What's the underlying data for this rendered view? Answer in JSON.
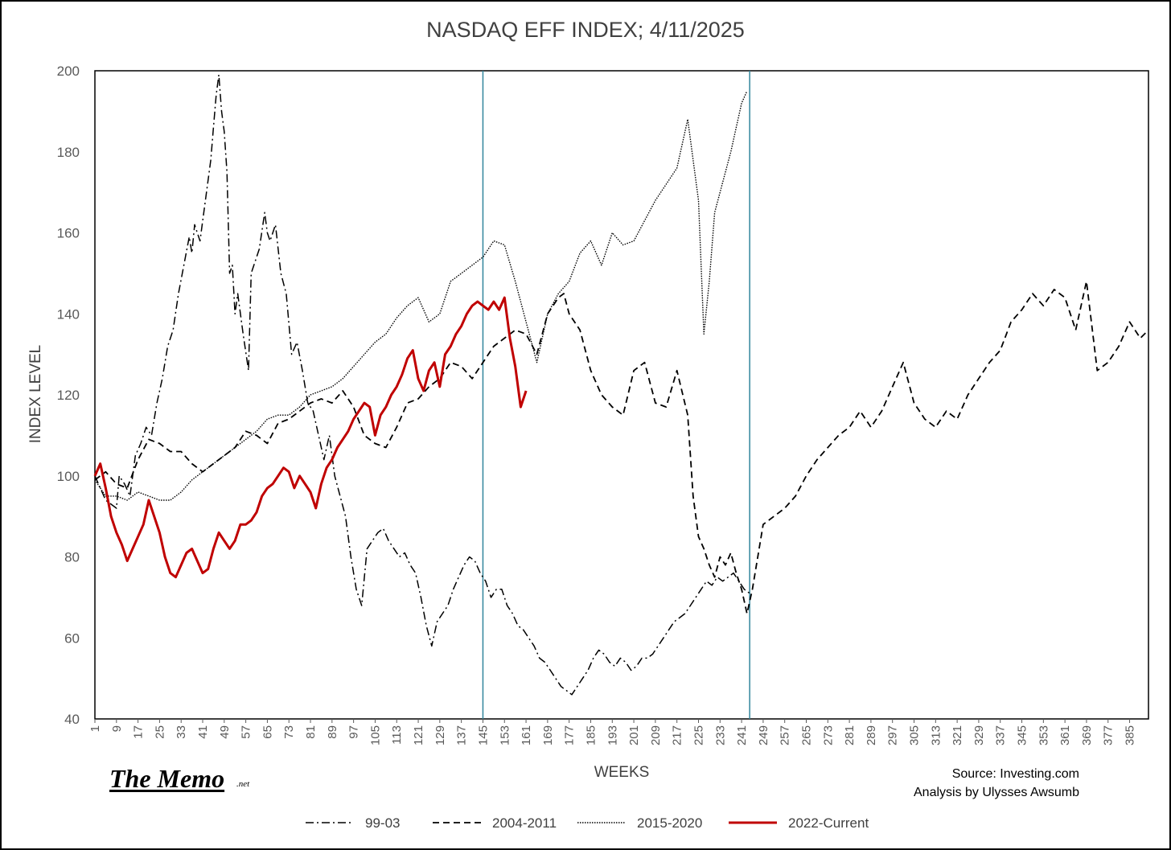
{
  "chart_data": {
    "type": "line",
    "title": "NASDAQ EFF INDEX; 4/11/2025",
    "xlabel": "WEEKS",
    "ylabel": "INDEX LEVEL",
    "xlim": [
      1,
      392
    ],
    "ylim": [
      40,
      200
    ],
    "y_ticks": [
      40,
      60,
      80,
      100,
      120,
      140,
      160,
      180,
      200
    ],
    "x_ticks": [
      1,
      9,
      17,
      25,
      33,
      41,
      49,
      57,
      65,
      73,
      81,
      89,
      97,
      105,
      113,
      121,
      129,
      137,
      145,
      153,
      161,
      169,
      177,
      185,
      193,
      201,
      209,
      217,
      225,
      233,
      241,
      249,
      257,
      265,
      273,
      281,
      289,
      297,
      305,
      313,
      321,
      329,
      337,
      345,
      353,
      361,
      369,
      377,
      385
    ],
    "vertical_lines": [
      145,
      244
    ],
    "grid": false,
    "legend_position": "bottom",
    "series": [
      {
        "name": "99-03",
        "color": "#000000",
        "style": "dashdot",
        "x": [
          1,
          5,
          9,
          10,
          12,
          14,
          16,
          18,
          20,
          22,
          24,
          26,
          28,
          30,
          32,
          34,
          36,
          37,
          38,
          39,
          40,
          42,
          44,
          45,
          46,
          47,
          48,
          49,
          50,
          51,
          52,
          53,
          54,
          56,
          58,
          59,
          60,
          62,
          64,
          65,
          66,
          68,
          70,
          72,
          74,
          76,
          78,
          80,
          82,
          84,
          86,
          88,
          90,
          92,
          94,
          96,
          98,
          100,
          102,
          104,
          106,
          108,
          110,
          112,
          114,
          116,
          118,
          120,
          122,
          124,
          126,
          128,
          130,
          132,
          134,
          136,
          138,
          140,
          142,
          144,
          146,
          148,
          150,
          152,
          154,
          156,
          158,
          160,
          162,
          164,
          166,
          168,
          170,
          172,
          174,
          176,
          178,
          180,
          182,
          184,
          186,
          188,
          190,
          192,
          194,
          196,
          198,
          200,
          202,
          204,
          206,
          208,
          210,
          212,
          214,
          216,
          218,
          220,
          222,
          224,
          226,
          228,
          230,
          232,
          234,
          236,
          238,
          240,
          242,
          244
        ],
        "values": [
          100,
          94,
          92,
          100,
          98,
          95,
          105,
          108,
          112,
          110,
          118,
          124,
          132,
          136,
          145,
          152,
          159,
          155,
          162,
          160,
          158,
          168,
          178,
          186,
          194,
          199,
          190,
          185,
          175,
          150,
          152,
          140,
          145,
          135,
          126,
          150,
          152,
          156,
          165,
          160,
          158,
          162,
          150,
          145,
          130,
          133,
          126,
          118,
          116,
          110,
          104,
          110,
          100,
          95,
          90,
          80,
          72,
          68,
          82,
          84,
          86,
          87,
          84,
          82,
          80,
          81,
          78,
          76,
          70,
          63,
          58,
          64,
          66,
          68,
          72,
          75,
          78,
          80,
          79,
          76,
          74,
          70,
          72,
          72,
          68,
          66,
          63,
          62,
          60,
          58,
          55,
          54,
          52,
          50,
          48,
          47,
          46,
          48,
          50,
          52,
          55,
          57,
          56,
          54,
          53,
          55,
          54,
          52,
          53,
          55,
          55,
          56,
          58,
          60,
          62,
          64,
          65,
          66,
          68,
          70,
          72,
          74,
          73,
          75,
          74,
          75,
          76,
          74,
          72,
          71
        ]
      },
      {
        "name": "2004-2011",
        "color": "#000000",
        "style": "dashed",
        "x": [
          1,
          5,
          9,
          13,
          17,
          21,
          25,
          29,
          33,
          37,
          41,
          45,
          49,
          53,
          57,
          61,
          65,
          69,
          73,
          77,
          81,
          85,
          89,
          93,
          97,
          101,
          105,
          109,
          113,
          117,
          121,
          125,
          129,
          133,
          137,
          141,
          145,
          149,
          153,
          157,
          161,
          165,
          169,
          173,
          175,
          177,
          181,
          185,
          189,
          193,
          197,
          201,
          205,
          209,
          213,
          217,
          221,
          223,
          225,
          227,
          229,
          231,
          233,
          235,
          237,
          239,
          241,
          243,
          245,
          249,
          253,
          257,
          261,
          265,
          269,
          273,
          277,
          281,
          285,
          289,
          293,
          297,
          301,
          305,
          309,
          313,
          317,
          321,
          325,
          329,
          333,
          337,
          341,
          345,
          349,
          353,
          357,
          361,
          365,
          369,
          373,
          377,
          381,
          385,
          389,
          392
        ],
        "values": [
          99,
          101,
          98,
          97,
          104,
          109,
          108,
          106,
          106,
          103,
          101,
          103,
          105,
          107,
          111,
          110,
          108,
          113,
          114,
          116,
          118,
          119,
          118,
          121,
          117,
          110,
          108,
          107,
          112,
          118,
          119,
          122,
          124,
          128,
          127,
          124,
          128,
          132,
          134,
          136,
          135,
          130,
          140,
          144,
          145,
          140,
          136,
          126,
          120,
          117,
          115,
          126,
          128,
          118,
          117,
          126,
          115,
          95,
          85,
          82,
          78,
          75,
          80,
          78,
          81,
          76,
          72,
          66,
          72,
          88,
          90,
          92,
          95,
          100,
          104,
          107,
          110,
          112,
          116,
          112,
          116,
          122,
          128,
          118,
          114,
          112,
          116,
          114,
          120,
          124,
          128,
          131,
          138,
          141,
          145,
          142,
          146,
          144,
          136,
          148,
          126,
          128,
          132,
          138,
          134,
          136
        ]
      },
      {
        "name": "2015-2020",
        "color": "#000000",
        "style": "dotted",
        "x": [
          1,
          5,
          9,
          13,
          17,
          21,
          25,
          29,
          33,
          37,
          41,
          45,
          49,
          53,
          57,
          61,
          65,
          69,
          73,
          77,
          81,
          85,
          89,
          93,
          97,
          101,
          105,
          109,
          113,
          117,
          121,
          125,
          129,
          133,
          137,
          141,
          145,
          149,
          153,
          157,
          161,
          165,
          169,
          173,
          177,
          181,
          185,
          189,
          193,
          197,
          201,
          205,
          209,
          213,
          217,
          221,
          225,
          227,
          229,
          231,
          233,
          235,
          237,
          239,
          241,
          243
        ],
        "values": [
          99,
          95,
          95,
          94,
          96,
          95,
          94,
          94,
          96,
          99,
          101,
          103,
          105,
          107,
          109,
          111,
          114,
          115,
          115,
          117,
          120,
          121,
          122,
          124,
          127,
          130,
          133,
          135,
          139,
          142,
          144,
          138,
          140,
          148,
          150,
          152,
          154,
          158,
          157,
          148,
          138,
          128,
          140,
          145,
          148,
          155,
          158,
          152,
          160,
          157,
          158,
          163,
          168,
          172,
          176,
          188,
          168,
          135,
          148,
          165,
          170,
          175,
          180,
          186,
          192,
          195
        ]
      },
      {
        "name": "2022-Current",
        "color": "#c00000",
        "style": "solid",
        "x": [
          1,
          3,
          5,
          7,
          9,
          11,
          13,
          15,
          17,
          19,
          21,
          23,
          25,
          27,
          29,
          31,
          33,
          35,
          37,
          39,
          41,
          43,
          45,
          47,
          49,
          51,
          53,
          55,
          57,
          59,
          61,
          63,
          65,
          67,
          69,
          71,
          73,
          75,
          77,
          79,
          81,
          83,
          85,
          87,
          89,
          91,
          93,
          95,
          97,
          99,
          101,
          103,
          105,
          107,
          109,
          111,
          113,
          115,
          117,
          119,
          121,
          123,
          125,
          127,
          129,
          131,
          133,
          135,
          137,
          139,
          141,
          143,
          145,
          147,
          149,
          151,
          153,
          155,
          157,
          159,
          161
        ],
        "values": [
          100,
          103,
          97,
          90,
          86,
          83,
          79,
          82,
          85,
          88,
          94,
          90,
          86,
          80,
          76,
          75,
          78,
          81,
          82,
          79,
          76,
          77,
          82,
          86,
          84,
          82,
          84,
          88,
          88,
          89,
          91,
          95,
          97,
          98,
          100,
          102,
          101,
          97,
          100,
          98,
          96,
          92,
          98,
          102,
          104,
          107,
          109,
          111,
          114,
          116,
          118,
          117,
          110,
          115,
          117,
          120,
          122,
          125,
          129,
          131,
          124,
          121,
          126,
          128,
          122,
          130,
          132,
          135,
          137,
          140,
          142,
          143,
          142,
          141,
          143,
          141,
          144,
          134,
          127,
          117,
          121
        ]
      }
    ]
  },
  "branding": {
    "logo": "The Memo",
    "logo_suffix": ".net"
  },
  "credits": {
    "source": "Source: Investing.com",
    "analysis": "Analysis by Ulysses Awsumb"
  }
}
